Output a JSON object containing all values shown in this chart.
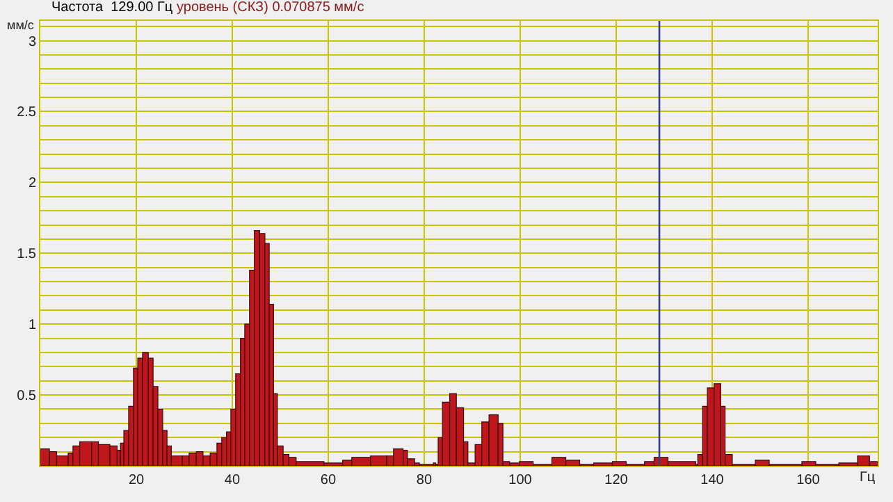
{
  "chart_data": {
    "type": "histogram",
    "title": "Частота  129.00 Гц",
    "subtitle": "уровень (СКЗ) 0.070875 мм/с",
    "xlabel": "Гц",
    "ylabel": "мм/с",
    "bins": [
      0,
      1.9,
      3.4,
      5.8,
      6.8,
      8.2,
      10.7,
      12.1,
      14.5,
      16.0,
      16.7,
      17.4,
      18.4,
      19.4,
      20.3,
      21.3,
      22.5,
      23.5,
      24.5,
      25.5,
      26.4,
      27.3,
      29.6,
      31.0,
      32.5,
      33.9,
      35.4,
      36.8,
      37.8,
      38.8,
      39.7,
      40.7,
      41.7,
      42.6,
      43.6,
      44.6,
      45.7,
      46.8,
      47.7,
      48.6,
      49.4,
      50.6,
      51.8,
      53.3,
      59.1,
      63.0,
      64.9,
      68.8,
      72.2,
      73.6,
      75.6,
      76.5,
      78.0,
      79.0,
      81.9,
      82.4,
      82.9,
      83.8,
      85.3,
      86.7,
      88.2,
      89.1,
      90.6,
      92.0,
      93.5,
      95.4,
      96.4,
      97.8,
      99.8,
      102.7,
      106.6,
      109.5,
      112.4,
      115.3,
      119.2,
      122.1,
      125.9,
      127.9,
      130.8,
      136.6,
      137.0,
      138.0,
      139.0,
      140.4,
      141.8,
      142.7,
      144.2,
      149.0,
      151.9,
      158.7,
      161.6,
      166.4,
      170.3,
      172.8,
      174.5
    ],
    "color": "#c0171c",
    "values": [
      0.12,
      0.1,
      0.07,
      0.09,
      0.14,
      0.17,
      0.17,
      0.15,
      0.14,
      0.11,
      0.16,
      0.25,
      0.42,
      0.69,
      0.76,
      0.8,
      0.76,
      0.56,
      0.4,
      0.25,
      0.14,
      0.07,
      0.07,
      0.09,
      0.1,
      0.07,
      0.09,
      0.16,
      0.2,
      0.24,
      0.4,
      0.65,
      0.9,
      1.0,
      1.38,
      1.66,
      1.64,
      1.57,
      1.14,
      0.51,
      0.14,
      0.08,
      0.06,
      0.03,
      0.02,
      0.04,
      0.06,
      0.07,
      0.07,
      0.12,
      0.11,
      0.05,
      0.02,
      0.01,
      0.02,
      0.01,
      0.2,
      0.45,
      0.51,
      0.41,
      0.17,
      0.02,
      0.15,
      0.31,
      0.36,
      0.3,
      0.03,
      0.02,
      0.03,
      0.01,
      0.06,
      0.04,
      0.01,
      0.02,
      0.03,
      0.01,
      0.03,
      0.06,
      0.03,
      0.01,
      0.08,
      0.42,
      0.55,
      0.58,
      0.42,
      0.08,
      0.01,
      0.04,
      0.01,
      0.03,
      0.01,
      0.02,
      0.07,
      0.03
    ],
    "xlim": [
      0,
      174.5
    ],
    "xticks": [
      20,
      40,
      60,
      80,
      100,
      120,
      140,
      160
    ],
    "ylim": [
      0,
      3.14
    ],
    "yticks": [
      {
        "value": 0.1,
        "label": null
      },
      {
        "value": 0.2,
        "label": null
      },
      {
        "value": 0.3,
        "label": null
      },
      {
        "value": 0.4,
        "label": null
      },
      0.5,
      {
        "value": 0.6,
        "label": null
      },
      {
        "value": 0.7,
        "label": null
      },
      {
        "value": 0.8,
        "label": null
      },
      {
        "value": 0.9,
        "label": null
      },
      1,
      {
        "value": 1.1,
        "label": null
      },
      {
        "value": 1.2,
        "label": null
      },
      {
        "value": 1.3,
        "label": null
      },
      {
        "value": 1.4,
        "label": null
      },
      1.5,
      {
        "value": 1.6,
        "label": null
      },
      {
        "value": 1.7,
        "label": null
      },
      {
        "value": 1.8,
        "label": null
      },
      {
        "value": 1.9,
        "label": null
      },
      2,
      {
        "value": 2.1,
        "label": null
      },
      {
        "value": 2.2,
        "label": null
      },
      {
        "value": 2.3,
        "label": null
      },
      {
        "value": 2.4,
        "label": null
      },
      2.5,
      {
        "value": 2.6,
        "label": null
      },
      {
        "value": 2.7,
        "label": null
      },
      {
        "value": 2.8,
        "label": null
      },
      {
        "value": 2.9,
        "label": null
      },
      3,
      {
        "value": 3.1,
        "label": null
      }
    ],
    "grid": true,
    "ref_lines": [
      {
        "axis": "x",
        "value": 129,
        "color": "#3c3c8c"
      }
    ]
  }
}
